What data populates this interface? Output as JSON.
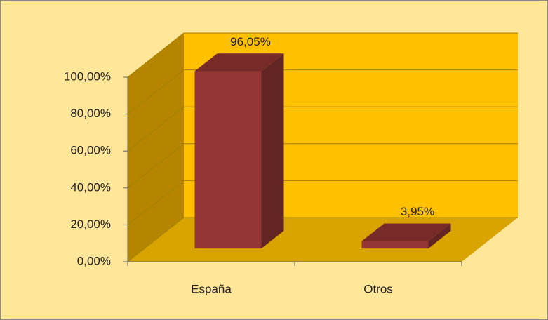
{
  "chart_data": {
    "type": "bar3d",
    "categories": [
      "España",
      "Otros"
    ],
    "values": [
      96.05,
      3.95
    ],
    "value_labels": [
      "96,05%",
      "3,95%"
    ],
    "color": "#943634",
    "ylim": [
      0,
      100
    ],
    "yticks": [
      {
        "value": 0,
        "label": "0,00%"
      },
      {
        "value": 20,
        "label": "20,00%"
      },
      {
        "value": 40,
        "label": "40,00%"
      },
      {
        "value": 60,
        "label": "60,00%"
      },
      {
        "value": 80,
        "label": "80,00%"
      },
      {
        "value": 100,
        "label": "100,00%"
      }
    ],
    "grid": true
  }
}
